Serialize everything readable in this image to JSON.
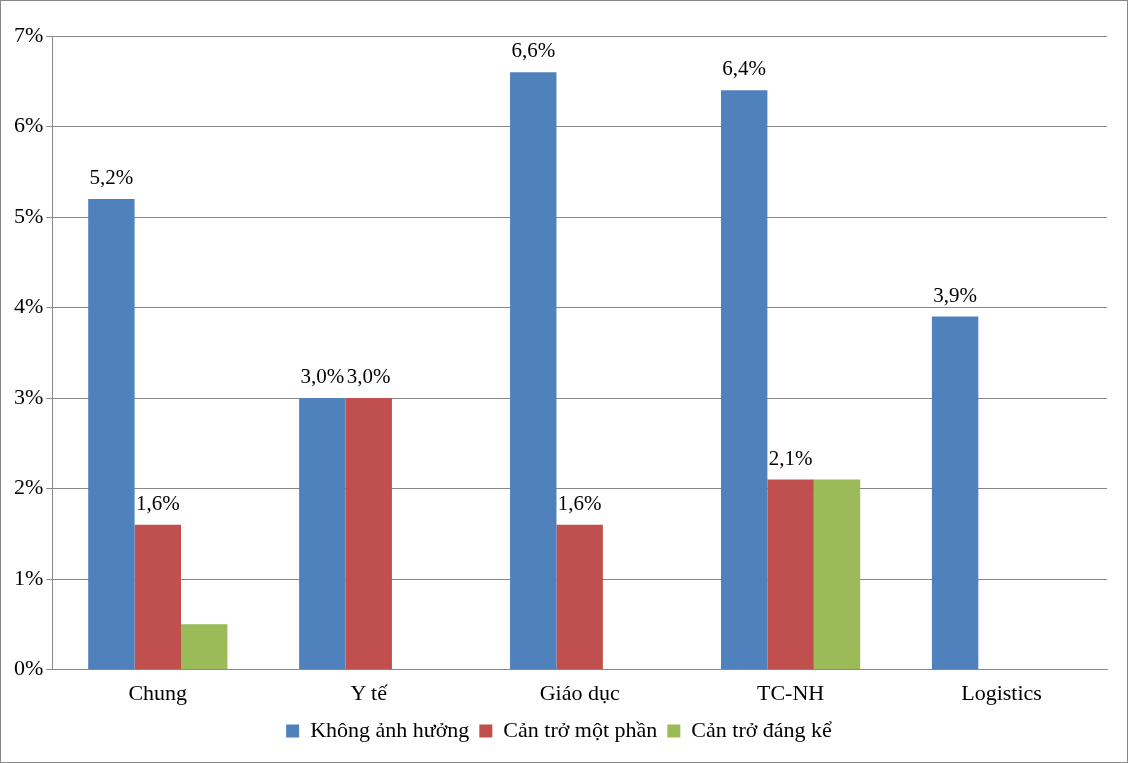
{
  "chart_data": {
    "type": "bar",
    "categories": [
      "Chung",
      "Y tế",
      "Giáo dục",
      "TC-NH",
      "Logistics"
    ],
    "series": [
      {
        "name": "Không ảnh hưởng",
        "color": "#4f81bd",
        "values": [
          5.2,
          3.0,
          6.6,
          6.4,
          3.9
        ],
        "value_labels": [
          "5,2%",
          "3,0%",
          "6,6%",
          "6,4%",
          "3,9%"
        ]
      },
      {
        "name": "Cản trở một phần",
        "color": "#c0504d",
        "values": [
          1.6,
          3.0,
          1.6,
          2.1,
          0
        ],
        "value_labels": [
          "1,6%",
          "3,0%",
          "1,6%",
          "2,1%",
          null
        ]
      },
      {
        "name": "Cản trở đáng kể",
        "color": "#9bbb59",
        "values": [
          0.5,
          0,
          0,
          2.1,
          0
        ],
        "value_labels": [
          null,
          null,
          null,
          null,
          null
        ]
      }
    ],
    "ylim": [
      0,
      7
    ],
    "yticks": [
      {
        "value": 0,
        "label": "0%"
      },
      {
        "value": 1,
        "label": "1%"
      },
      {
        "value": 2,
        "label": "2%"
      },
      {
        "value": 3,
        "label": "3%"
      },
      {
        "value": 4,
        "label": "4%"
      },
      {
        "value": 5,
        "label": "5%"
      },
      {
        "value": 6,
        "label": "6%"
      },
      {
        "value": 7,
        "label": "7%"
      }
    ],
    "grid": "y",
    "legend": "bottom"
  }
}
